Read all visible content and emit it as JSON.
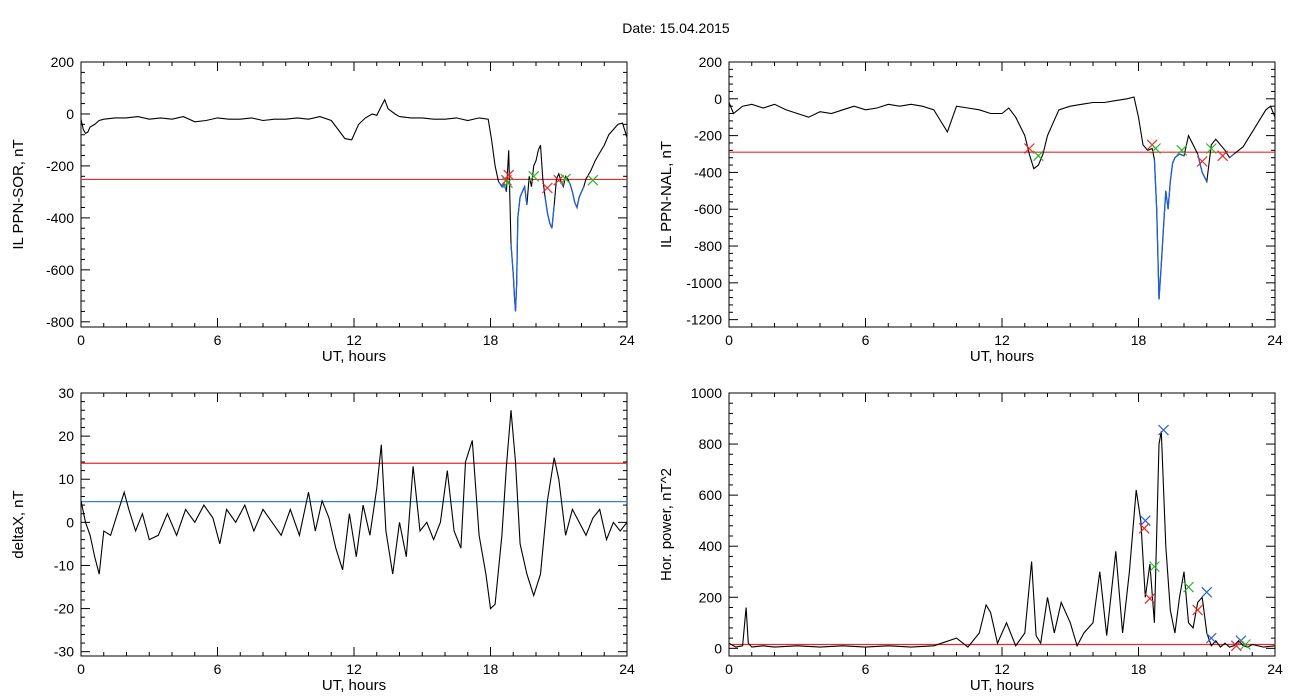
{
  "page": {
    "title": "Date:  15.04.2015"
  },
  "chart_data": [
    {
      "id": "il-sor",
      "type": "line",
      "xlabel": "UT, hours",
      "ylabel": "IL PPN-SOR, nT",
      "xlim": [
        0,
        24
      ],
      "ylim": [
        -820,
        200
      ],
      "xticks": [
        0,
        6,
        12,
        18,
        24
      ],
      "yticks": [
        200,
        0,
        -200,
        -400,
        -600,
        -800
      ],
      "threshold": {
        "value": -252,
        "color": "#e8282a"
      },
      "segment_highlight_color": "#1f5fd8",
      "series": [
        {
          "color": "#000000",
          "x": [
            0,
            0.1,
            0.2,
            0.3,
            0.4,
            0.6,
            0.8,
            1.0,
            1.5,
            2.0,
            2.5,
            3.0,
            3.5,
            4.0,
            4.5,
            5.0,
            5.5,
            6.0,
            6.5,
            7.0,
            7.5,
            8.0,
            8.5,
            9.0,
            9.5,
            10.0,
            10.5,
            11.0,
            11.3,
            11.6,
            11.9,
            12.2,
            12.5,
            12.8,
            13.0,
            13.2,
            13.35,
            13.5,
            13.8,
            14.0,
            14.5,
            15.0,
            15.5,
            16.0,
            16.5,
            17.0,
            17.5,
            17.9,
            18.05,
            18.2,
            18.35,
            18.5,
            18.6,
            18.7,
            18.8,
            18.9,
            19.0,
            19.05,
            19.1,
            19.15,
            19.2,
            19.3,
            19.4,
            19.5,
            19.6,
            19.7,
            19.8,
            19.9,
            20.0,
            20.1,
            20.2,
            20.3,
            20.4,
            20.5,
            20.6,
            20.7,
            20.8,
            20.9,
            21.0,
            21.1,
            21.2,
            21.3,
            21.4,
            21.5,
            21.6,
            21.7,
            21.8,
            21.9,
            22.0,
            22.1,
            22.2,
            22.4,
            22.6,
            22.8,
            23.0,
            23.2,
            23.4,
            23.6,
            23.8,
            24.0
          ],
          "y": [
            -20,
            -60,
            -75,
            -70,
            -50,
            -40,
            -25,
            -20,
            -15,
            -15,
            -10,
            -20,
            -15,
            -20,
            -10,
            -30,
            -25,
            -15,
            -20,
            -20,
            -15,
            -25,
            -20,
            -20,
            -15,
            -20,
            -10,
            -25,
            -60,
            -95,
            -100,
            -40,
            -15,
            0,
            -5,
            30,
            55,
            20,
            0,
            -10,
            -15,
            -15,
            -20,
            -20,
            -15,
            -25,
            -15,
            -20,
            -100,
            -200,
            -260,
            -280,
            -270,
            -300,
            -140,
            -500,
            -620,
            -700,
            -760,
            -650,
            -400,
            -320,
            -300,
            -280,
            -350,
            -240,
            -280,
            -200,
            -180,
            -140,
            -120,
            -250,
            -320,
            -380,
            -420,
            -440,
            -350,
            -250,
            -230,
            -260,
            -280,
            -240,
            -250,
            -270,
            -300,
            -340,
            -360,
            -320,
            -300,
            -280,
            -250,
            -220,
            -180,
            -150,
            -120,
            -80,
            -60,
            -40,
            -35,
            -90
          ]
        }
      ],
      "markers": [
        {
          "x": 18.7,
          "y": -255,
          "color": "#e8282a"
        },
        {
          "x": 18.8,
          "y": -235,
          "color": "#e8282a"
        },
        {
          "x": 18.75,
          "y": -265,
          "color": "#2db52d"
        },
        {
          "x": 19.9,
          "y": -240,
          "color": "#2db52d"
        },
        {
          "x": 20.5,
          "y": -285,
          "color": "#e8282a"
        },
        {
          "x": 21.0,
          "y": -255,
          "color": "#e8282a"
        },
        {
          "x": 21.3,
          "y": -250,
          "color": "#2db52d"
        },
        {
          "x": 22.5,
          "y": -255,
          "color": "#2db52d"
        }
      ]
    },
    {
      "id": "il-nal",
      "type": "line",
      "xlabel": "UT, hours",
      "ylabel": "IL PPN-NAL, nT",
      "xlim": [
        0,
        24
      ],
      "ylim": [
        -1240,
        200
      ],
      "xticks": [
        0,
        6,
        12,
        18,
        24
      ],
      "yticks": [
        200,
        0,
        -200,
        -400,
        -600,
        -800,
        -1000,
        -1200
      ],
      "threshold": {
        "value": -290,
        "color": "#e8282a"
      },
      "segment_highlight_color": "#1f5fd8",
      "series": [
        {
          "color": "#000000",
          "x": [
            0,
            0.2,
            0.4,
            0.6,
            1.0,
            1.5,
            2.0,
            2.5,
            3.0,
            3.5,
            4.0,
            4.5,
            5.0,
            5.5,
            6.0,
            6.5,
            7.0,
            7.5,
            8.0,
            8.5,
            9.0,
            9.3,
            9.6,
            10.0,
            10.5,
            11.0,
            11.5,
            12.0,
            12.3,
            12.6,
            13.0,
            13.2,
            13.4,
            13.6,
            13.8,
            14.0,
            14.5,
            15.0,
            15.5,
            16.0,
            16.5,
            17.0,
            17.5,
            17.8,
            18.0,
            18.2,
            18.4,
            18.6,
            18.7,
            18.8,
            18.9,
            19.0,
            19.1,
            19.2,
            19.3,
            19.4,
            19.5,
            19.6,
            19.8,
            20.0,
            20.2,
            20.4,
            20.6,
            20.8,
            21.0,
            21.2,
            21.4,
            21.6,
            21.8,
            22.0,
            22.2,
            22.4,
            22.6,
            22.8,
            23.0,
            23.2,
            23.4,
            23.6,
            23.8,
            24.0
          ],
          "y": [
            -20,
            -80,
            -60,
            -40,
            -30,
            -50,
            -30,
            -60,
            -80,
            -100,
            -70,
            -80,
            -60,
            -40,
            -60,
            -50,
            -30,
            -40,
            -30,
            -40,
            -60,
            -120,
            -180,
            -40,
            -50,
            -60,
            -80,
            -80,
            -50,
            -100,
            -200,
            -300,
            -380,
            -360,
            -300,
            -200,
            -60,
            -40,
            -30,
            -20,
            -20,
            -10,
            0,
            10,
            -100,
            -250,
            -280,
            -270,
            -330,
            -600,
            -1090,
            -900,
            -700,
            -500,
            -600,
            -450,
            -350,
            -320,
            -300,
            -310,
            -200,
            -250,
            -300,
            -400,
            -450,
            -250,
            -220,
            -250,
            -280,
            -320,
            -300,
            -280,
            -260,
            -220,
            -180,
            -140,
            -100,
            -60,
            -40,
            -100
          ]
        }
      ],
      "markers": [
        {
          "x": 13.2,
          "y": -270,
          "color": "#e8282a"
        },
        {
          "x": 13.6,
          "y": -310,
          "color": "#2db52d"
        },
        {
          "x": 18.6,
          "y": -250,
          "color": "#e8282a"
        },
        {
          "x": 18.75,
          "y": -270,
          "color": "#2db52d"
        },
        {
          "x": 19.9,
          "y": -280,
          "color": "#2db52d"
        },
        {
          "x": 20.8,
          "y": -340,
          "color": "#e8282a"
        },
        {
          "x": 21.2,
          "y": -270,
          "color": "#2db52d"
        },
        {
          "x": 21.7,
          "y": -310,
          "color": "#e8282a"
        }
      ]
    },
    {
      "id": "deltax",
      "type": "line",
      "xlabel": "UT, hours",
      "ylabel": "deltaX, nT",
      "xlim": [
        0,
        24
      ],
      "ylim": [
        -31,
        30
      ],
      "xticks": [
        0,
        6,
        12,
        18,
        24
      ],
      "yticks": [
        30,
        20,
        10,
        0,
        -10,
        -20,
        -30
      ],
      "thresholds": [
        {
          "value": 13.7,
          "color": "#e8282a"
        },
        {
          "value": 4.8,
          "color": "#2a88d8"
        }
      ],
      "series": [
        {
          "color": "#000000",
          "x": [
            0,
            0.2,
            0.4,
            0.6,
            0.8,
            1.0,
            1.3,
            1.6,
            1.9,
            2.1,
            2.4,
            2.7,
            3.0,
            3.4,
            3.8,
            4.2,
            4.6,
            5.0,
            5.4,
            5.8,
            6.1,
            6.4,
            6.8,
            7.2,
            7.6,
            8.0,
            8.4,
            8.8,
            9.2,
            9.6,
            10.0,
            10.3,
            10.6,
            10.9,
            11.2,
            11.5,
            11.8,
            12.1,
            12.4,
            12.7,
            13.0,
            13.2,
            13.4,
            13.7,
            14.0,
            14.3,
            14.6,
            14.9,
            15.2,
            15.5,
            15.8,
            16.1,
            16.4,
            16.7,
            16.9,
            17.2,
            17.5,
            17.8,
            18.0,
            18.2,
            18.5,
            18.7,
            18.9,
            19.1,
            19.3,
            19.6,
            19.9,
            20.2,
            20.5,
            20.8,
            21.0,
            21.3,
            21.6,
            21.9,
            22.2,
            22.5,
            22.8,
            23.1,
            23.4,
            23.7,
            24.0
          ],
          "y": [
            5,
            0,
            -3,
            -8,
            -12,
            -2,
            -3,
            2,
            7,
            3,
            -2,
            2,
            -4,
            -3,
            2,
            -3,
            3,
            0,
            4,
            1,
            -5,
            3,
            0,
            4,
            -2,
            3,
            0,
            -3,
            3,
            -3,
            7,
            -2,
            5,
            1,
            -6,
            -11,
            2,
            -8,
            4,
            -3,
            8,
            18,
            -2,
            -12,
            0,
            -8,
            13,
            -2,
            0,
            -4,
            0,
            12,
            -2,
            -6,
            14,
            19,
            -3,
            -12,
            -20,
            -19,
            -3,
            13,
            26,
            14,
            -5,
            -12,
            -17,
            -12,
            5,
            15,
            10,
            -3,
            3,
            0,
            -3,
            1,
            3,
            -4,
            0,
            -2,
            0
          ]
        }
      ]
    },
    {
      "id": "hor-power",
      "type": "line",
      "xlabel": "UT, hours",
      "ylabel": "Hor. power, nT^2",
      "xlim": [
        0,
        24
      ],
      "ylim": [
        -30,
        1000
      ],
      "xticks": [
        0,
        6,
        12,
        18,
        24
      ],
      "yticks": [
        1000,
        800,
        600,
        400,
        200,
        0
      ],
      "threshold": {
        "value": 15,
        "color": "#e8282a"
      },
      "series": [
        {
          "color": "#000000",
          "x": [
            0,
            0.3,
            0.6,
            0.75,
            0.85,
            1.0,
            1.5,
            2.0,
            3.0,
            4.0,
            5.0,
            6.0,
            7.0,
            8.0,
            9.0,
            10.0,
            10.5,
            11.0,
            11.3,
            11.5,
            11.8,
            12.2,
            12.6,
            13.0,
            13.3,
            13.5,
            13.7,
            14.0,
            14.3,
            14.6,
            15.0,
            15.3,
            15.6,
            16.0,
            16.3,
            16.6,
            17.0,
            17.3,
            17.6,
            17.9,
            18.1,
            18.3,
            18.5,
            18.7,
            18.9,
            19.0,
            19.2,
            19.4,
            19.6,
            19.8,
            20.0,
            20.2,
            20.4,
            20.6,
            20.8,
            21.0,
            21.2,
            21.4,
            21.6,
            21.8,
            22.0,
            22.2,
            22.4,
            22.6,
            22.8,
            23.0,
            23.5,
            24.0
          ],
          "y": [
            20,
            5,
            10,
            160,
            20,
            5,
            10,
            5,
            10,
            5,
            10,
            5,
            10,
            5,
            10,
            40,
            5,
            60,
            170,
            140,
            20,
            100,
            10,
            60,
            340,
            50,
            20,
            200,
            60,
            180,
            100,
            10,
            60,
            100,
            300,
            50,
            380,
            60,
            300,
            620,
            500,
            200,
            330,
            100,
            800,
            850,
            400,
            150,
            60,
            200,
            300,
            100,
            80,
            180,
            200,
            60,
            10,
            30,
            5,
            20,
            5,
            10,
            30,
            10,
            5,
            15,
            5,
            10
          ]
        }
      ],
      "markers": [
        {
          "x": 18.3,
          "y": 500,
          "color": "#2a60d8"
        },
        {
          "x": 18.25,
          "y": 470,
          "color": "#e8282a"
        },
        {
          "x": 18.5,
          "y": 195,
          "color": "#e8282a"
        },
        {
          "x": 18.7,
          "y": 320,
          "color": "#2db52d"
        },
        {
          "x": 19.1,
          "y": 855,
          "color": "#2a60d8"
        },
        {
          "x": 20.2,
          "y": 240,
          "color": "#2db52d"
        },
        {
          "x": 20.6,
          "y": 150,
          "color": "#e8282a"
        },
        {
          "x": 21.0,
          "y": 220,
          "color": "#2a60d8"
        },
        {
          "x": 21.2,
          "y": 40,
          "color": "#2a60d8"
        },
        {
          "x": 22.5,
          "y": 30,
          "color": "#2a60d8"
        },
        {
          "x": 22.3,
          "y": 10,
          "color": "#e8282a"
        },
        {
          "x": 22.7,
          "y": 15,
          "color": "#2db52d"
        }
      ]
    }
  ]
}
